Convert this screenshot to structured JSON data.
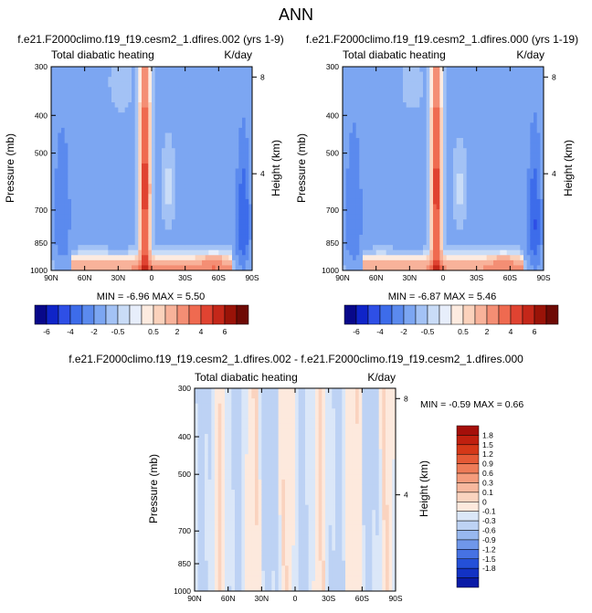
{
  "main_title": "ANN",
  "panels": [
    {
      "id": "p1",
      "title": "f.e21.F2000climo.f19_f19.cesm2_1.dfires.002 (yrs 1-9)",
      "left_label": "Total diabatic heating",
      "right_label": "K/day",
      "ylabel": "Pressure (mb)",
      "y2label": "Height (km)",
      "minmax": "MIN =  -6.96  MAX =   5.50"
    },
    {
      "id": "p2",
      "title": "f.e21.F2000climo.f19_f19.cesm2_1.dfires.000 (yrs 1-19)",
      "left_label": "Total diabatic heating",
      "right_label": "K/day",
      "ylabel": "Pressure (mb)",
      "y2label": "Height (km)",
      "minmax": "MIN =  -6.87  MAX =   5.46"
    },
    {
      "id": "p3",
      "title": "f.e21.F2000climo.f19_f19.cesm2_1.dfires.002 - f.e21.F2000climo.f19_f19.cesm2_1.dfires.000",
      "left_label": "Total diabatic heating",
      "right_label": "K/day",
      "ylabel": "Pressure (mb)",
      "y2label": "Height (km)",
      "minmax": "MIN =  -0.59  MAX =   0.66"
    }
  ],
  "chart_data": [
    {
      "type": "heatmap",
      "title": "f.e21.F2000climo.f19_f19.cesm2_1.dfires.002 (yrs 1-9)",
      "xlabel": "",
      "ylabel": "Pressure (mb)",
      "y2label": "Height (km)",
      "x_ticks": [
        "90N",
        "60N",
        "30N",
        "0",
        "30S",
        "60S",
        "90S"
      ],
      "x_range": [
        90,
        -90
      ],
      "y_ticks": [
        300,
        400,
        500,
        700,
        850,
        1000
      ],
      "y_range": [
        1000,
        300
      ],
      "y_scale": "log",
      "y2_ticks": [
        8,
        4
      ],
      "units": "K/day",
      "min": -6.96,
      "max": 5.5,
      "colorbar_levels": [
        "-6",
        "-4",
        "-2",
        "-0.5",
        "0.5",
        "2",
        "4",
        "6"
      ],
      "colorbar_colors": [
        "#08088a",
        "#0f24c8",
        "#2e4fe6",
        "#3d6cea",
        "#5b8aee",
        "#7ca6f2",
        "#a3c2f5",
        "#c9dcf7",
        "#e7eefb",
        "#fdebe0",
        "#fbd2bc",
        "#f8b29a",
        "#f48e74",
        "#ef6a50",
        "#e04331",
        "#c42719",
        "#9a1308",
        "#6e0a05"
      ],
      "fields": [
        "polar cooling (high latitudes, below 500 mb)",
        "equatorial deep convective heating column near 5N",
        "boundary-layer heating (850-1000 mb)",
        "weak cooling aloft in subtropics"
      ]
    },
    {
      "type": "heatmap",
      "title": "f.e21.F2000climo.f19_f19.cesm2_1.dfires.000 (yrs 1-19)",
      "xlabel": "",
      "ylabel": "Pressure (mb)",
      "y2label": "Height (km)",
      "x_ticks": [
        "90N",
        "60N",
        "30N",
        "0",
        "30S",
        "60S",
        "90S"
      ],
      "x_range": [
        90,
        -90
      ],
      "y_ticks": [
        300,
        400,
        500,
        700,
        850,
        1000
      ],
      "y_range": [
        1000,
        300
      ],
      "y_scale": "log",
      "y2_ticks": [
        8,
        4
      ],
      "units": "K/day",
      "min": -6.87,
      "max": 5.46,
      "colorbar_levels": [
        "-6",
        "-4",
        "-2",
        "-0.5",
        "0.5",
        "2",
        "4",
        "6"
      ]
    },
    {
      "type": "heatmap",
      "title": "f.e21.F2000climo.f19_f19.cesm2_1.dfires.002 - f.e21.F2000climo.f19_f19.cesm2_1.dfires.000",
      "xlabel": "",
      "ylabel": "Pressure (mb)",
      "y2label": "Height (km)",
      "x_ticks": [
        "90N",
        "60N",
        "30N",
        "0",
        "30S",
        "60S",
        "90S"
      ],
      "x_range": [
        90,
        -90
      ],
      "y_ticks": [
        300,
        400,
        500,
        700,
        850,
        1000
      ],
      "y_range": [
        1000,
        300
      ],
      "y_scale": "log",
      "y2_ticks": [
        8,
        4
      ],
      "units": "K/day",
      "min": -0.59,
      "max": 0.66,
      "colorbar_levels": [
        "1.8",
        "1.5",
        "1.2",
        "0.9",
        "0.6",
        "0.3",
        "0.1",
        "0",
        "-0.1",
        "-0.3",
        "-0.6",
        "-0.9",
        "-1.2",
        "-1.5",
        "-1.8"
      ],
      "colorbar_colors": [
        "#a50f0a",
        "#c0200f",
        "#d53818",
        "#e55a36",
        "#ee7c58",
        "#f59c7c",
        "#f8b89e",
        "#fad3bf",
        "#fde9dd",
        "#dbe7f8",
        "#bdd2f4",
        "#98b8ef",
        "#6f97ea",
        "#4672e3",
        "#2450d8",
        "#1232c4",
        "#0a1ba6"
      ]
    }
  ]
}
